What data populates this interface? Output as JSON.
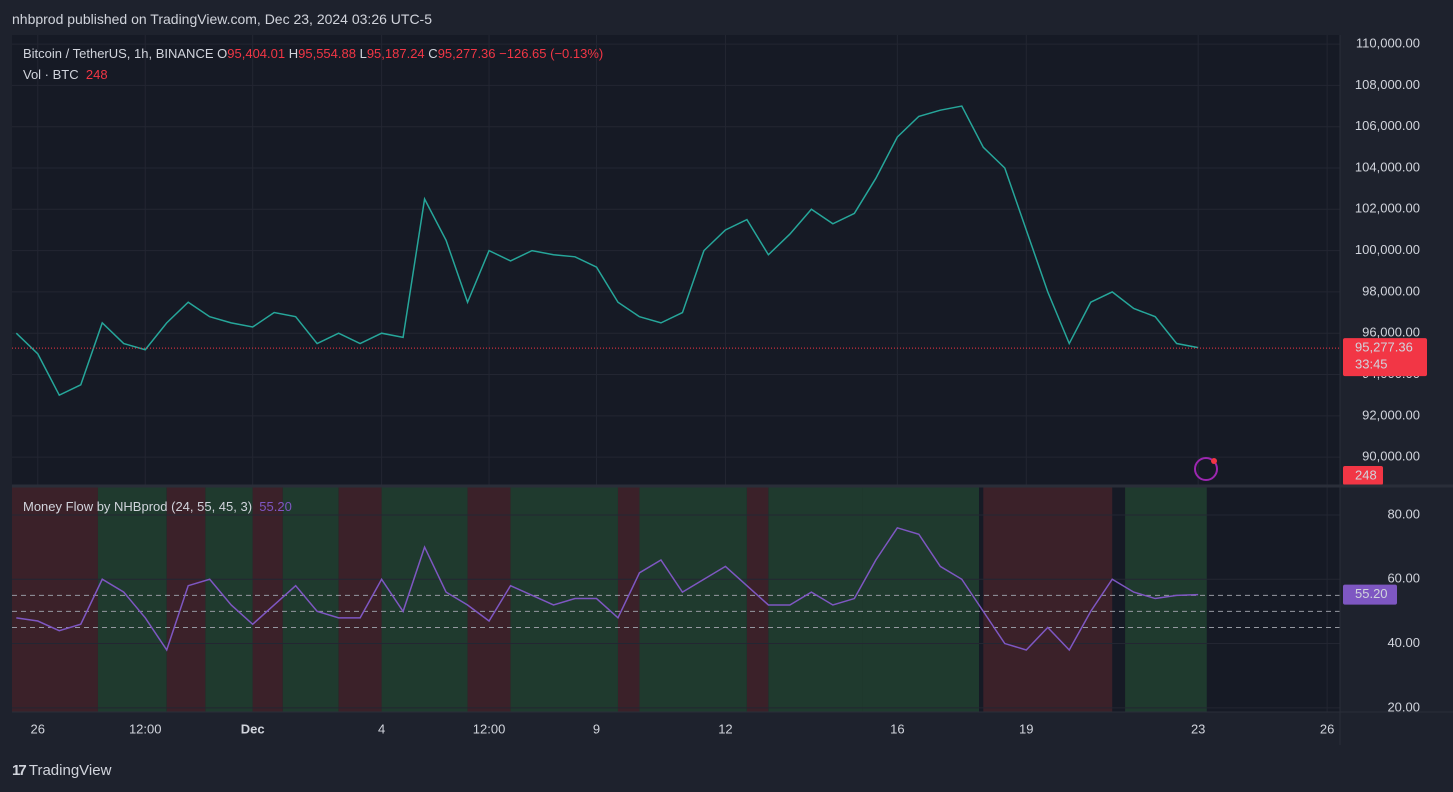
{
  "header": {
    "published": "nhbprod published on TradingView.com, Dec 23, 2024 03:26 UTC-5",
    "symbol": "Bitcoin / TetherUS, 1h, BINANCE",
    "ohlc": [
      {
        "key": "O",
        "value": "95,404.01"
      },
      {
        "key": "H",
        "value": "95,554.88"
      },
      {
        "key": "L",
        "value": "95,187.24"
      },
      {
        "key": "C",
        "value": "95,277.36"
      }
    ],
    "change": "−126.65 (−0.13%)",
    "volume_label": "Vol · BTC",
    "volume_value": "248",
    "countdown": "33:45",
    "footer": "TradingView"
  },
  "chart_data": [
    {
      "type": "line",
      "xlim": [
        -0.6,
        30.3
      ],
      "ylim": [
        88650,
        110440
      ],
      "xticks": [
        {
          "value": 0,
          "label": "26"
        },
        {
          "value": 2.5,
          "label": "12:00"
        },
        {
          "value": 5,
          "label": "Dec"
        },
        {
          "value": 8,
          "label": "4"
        },
        {
          "value": 10.5,
          "label": "12:00"
        },
        {
          "value": 13,
          "label": "9"
        },
        {
          "value": 16,
          "label": "12"
        },
        {
          "value": 20,
          "label": "16"
        },
        {
          "value": 23,
          "label": "19"
        },
        {
          "value": 27,
          "label": "23"
        },
        {
          "value": 30,
          "label": "26"
        }
      ],
      "yticks": [
        {
          "value": 90000,
          "label": "90,000.00"
        },
        {
          "value": 92000,
          "label": "92,000.00"
        },
        {
          "value": 94000,
          "label": "94,000.00"
        },
        {
          "value": 96000,
          "label": "96,000.00"
        },
        {
          "value": 98000,
          "label": "98,000.00"
        },
        {
          "value": 100000,
          "label": "100,000.00"
        },
        {
          "value": 102000,
          "label": "102,000.00"
        },
        {
          "value": 104000,
          "label": "104,000.00"
        },
        {
          "value": 106000,
          "label": "106,000.00"
        },
        {
          "value": 108000,
          "label": "108,000.00"
        },
        {
          "value": 110000,
          "label": "110,000.00"
        }
      ],
      "x": [
        -0.5,
        0,
        0.5,
        1,
        1.5,
        2,
        2.5,
        3,
        3.5,
        4,
        4.5,
        5,
        5.5,
        6,
        6.5,
        7,
        7.5,
        8,
        8.5,
        9,
        9.5,
        10,
        10.5,
        11,
        11.5,
        12,
        12.5,
        13,
        13.5,
        14,
        14.5,
        15,
        15.5,
        16,
        16.5,
        17,
        17.5,
        18,
        18.5,
        19,
        19.5,
        20,
        20.5,
        21,
        21.5,
        22,
        22.5,
        23,
        23.5,
        24,
        24.5,
        25,
        25.5,
        26,
        26.5,
        27
      ],
      "series": [
        {
          "color": "#26a69a",
          "values": [
            96000,
            95000,
            93000,
            93500,
            96500,
            95500,
            95200,
            96500,
            97500,
            96800,
            96500,
            96300,
            97000,
            96800,
            95500,
            96000,
            95500,
            96000,
            95800,
            102500,
            100500,
            97500,
            100000,
            99500,
            100000,
            99800,
            99700,
            99200,
            97500,
            96800,
            96500,
            97000,
            100000,
            101000,
            101500,
            99800,
            100800,
            102000,
            101300,
            101800,
            103500,
            105500,
            106500,
            106800,
            107000,
            105000,
            104000,
            101000,
            98000,
            95500,
            97500,
            98000,
            97200,
            96800,
            95500,
            95300
          ]
        }
      ],
      "last_price": {
        "value": 95277.36,
        "label": "95,277.36",
        "color": "#f23645"
      },
      "volume_badge": "248"
    },
    {
      "type": "line",
      "title": "Money Flow by NHBprod (24, 55, 45, 3)",
      "xlim": [
        -0.6,
        30.3
      ],
      "ylim": [
        18.7,
        88.7
      ],
      "yticks": [
        {
          "value": 20,
          "label": "20.00"
        },
        {
          "value": 40,
          "label": "40.00"
        },
        {
          "value": 60,
          "label": "60.00"
        },
        {
          "value": 80,
          "label": "80.00"
        }
      ],
      "levels": [
        55,
        50,
        45
      ],
      "shading": [
        {
          "start": -0.6,
          "end": 1.4,
          "color": "#3b2129"
        },
        {
          "start": 1.4,
          "end": 3.0,
          "color": "#1f3a2e"
        },
        {
          "start": 3.0,
          "end": 3.9,
          "color": "#3b2129"
        },
        {
          "start": 3.9,
          "end": 5.0,
          "color": "#1f3a2e"
        },
        {
          "start": 5.0,
          "end": 5.7,
          "color": "#3b2129"
        },
        {
          "start": 5.7,
          "end": 7.0,
          "color": "#1f3a2e"
        },
        {
          "start": 7.0,
          "end": 8.0,
          "color": "#3b2129"
        },
        {
          "start": 8.0,
          "end": 10.0,
          "color": "#1f3a2e"
        },
        {
          "start": 10.0,
          "end": 11.0,
          "color": "#3b2129"
        },
        {
          "start": 11.0,
          "end": 13.5,
          "color": "#1f3a2e"
        },
        {
          "start": 13.5,
          "end": 14.0,
          "color": "#3b2129"
        },
        {
          "start": 14.0,
          "end": 16.5,
          "color": "#1f3a2e"
        },
        {
          "start": 16.5,
          "end": 17.0,
          "color": "#3b2129"
        },
        {
          "start": 17.0,
          "end": 19.2,
          "color": "#1f3a2e"
        },
        {
          "start": 19.2,
          "end": 21.9,
          "color": "#1f3a2e"
        },
        {
          "start": 22.0,
          "end": 25.0,
          "color": "#3b2129"
        },
        {
          "start": 25.3,
          "end": 27.2,
          "color": "#1f3a2e"
        }
      ],
      "x": [
        -0.5,
        0,
        0.5,
        1,
        1.5,
        2,
        2.5,
        3,
        3.5,
        4,
        4.5,
        5,
        5.5,
        6,
        6.5,
        7,
        7.5,
        8,
        8.5,
        9,
        9.5,
        10,
        10.5,
        11,
        11.5,
        12,
        12.5,
        13,
        13.5,
        14,
        14.5,
        15,
        15.5,
        16,
        16.5,
        17,
        17.5,
        18,
        18.5,
        19,
        19.5,
        20,
        20.5,
        21,
        21.5,
        22,
        22.5,
        23,
        23.5,
        24,
        24.5,
        25,
        25.5,
        26,
        26.5,
        27
      ],
      "series": [
        {
          "color": "#7e57c2",
          "values": [
            48,
            47,
            44,
            46,
            60,
            56,
            48,
            38,
            58,
            60,
            52,
            46,
            52,
            58,
            50,
            48,
            48,
            60,
            50,
            70,
            56,
            52,
            47,
            58,
            55,
            52,
            54,
            54,
            48,
            62,
            66,
            56,
            60,
            64,
            58,
            52,
            52,
            56,
            52,
            54,
            66,
            76,
            74,
            64,
            60,
            50,
            40,
            38,
            45,
            38,
            50,
            60,
            56,
            54,
            55,
            55.2
          ]
        }
      ],
      "last": {
        "value": 55.2,
        "label": "55.20"
      }
    }
  ]
}
